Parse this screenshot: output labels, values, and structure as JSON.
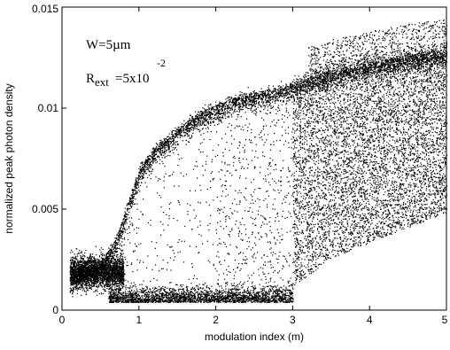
{
  "chart_data": {
    "type": "scatter",
    "xlabel": "modulation index (m)",
    "ylabel": "normalized peak photon density",
    "xlim": [
      0,
      5
    ],
    "ylim": [
      0,
      0.015
    ],
    "x_ticks": [
      "0",
      "1",
      "2",
      "3",
      "4",
      "5"
    ],
    "y_ticks": [
      "0",
      "0.005",
      "0.01",
      "0.015"
    ],
    "annotations": {
      "w": "W=5µm",
      "r_main": "R",
      "r_sub": "ext",
      "r_eq": "=5x10",
      "r_exp": "-2"
    },
    "point_color": "#000000",
    "series": [
      {
        "description_points": [
          {
            "x": 0.1,
            "y": 0.0018
          },
          {
            "x": 0.3,
            "y": 0.002
          },
          {
            "x": 0.5,
            "y": 0.0024
          },
          {
            "x": 0.7,
            "y": 0.0035
          },
          {
            "x": 0.9,
            "y": 0.0058
          },
          {
            "x": 1.0,
            "y": 0.007
          },
          {
            "x": 1.2,
            "y": 0.008
          },
          {
            "x": 1.5,
            "y": 0.009
          },
          {
            "x": 1.8,
            "y": 0.0098
          },
          {
            "x": 2.2,
            "y": 0.0105
          },
          {
            "x": 2.6,
            "y": 0.0108
          },
          {
            "x": 3.0,
            "y": 0.0112
          },
          {
            "x": 3.5,
            "y": 0.0118
          },
          {
            "x": 4.0,
            "y": 0.0122
          },
          {
            "x": 4.5,
            "y": 0.0126
          },
          {
            "x": 5.0,
            "y": 0.0128
          }
        ]
      }
    ]
  }
}
